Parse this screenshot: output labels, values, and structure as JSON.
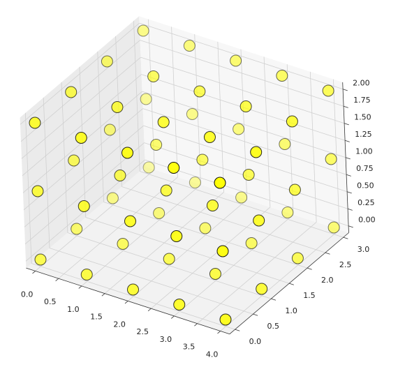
{
  "chart_data": {
    "type": "scatter3d",
    "x": [
      0,
      0,
      0,
      0,
      0,
      0,
      0,
      0,
      0,
      0,
      0,
      0,
      1,
      1,
      1,
      1,
      1,
      1,
      1,
      1,
      1,
      1,
      1,
      1,
      2,
      2,
      2,
      2,
      2,
      2,
      2,
      2,
      2,
      2,
      2,
      2,
      3,
      3,
      3,
      3,
      3,
      3,
      3,
      3,
      3,
      3,
      3,
      3,
      4,
      4,
      4,
      4,
      4,
      4,
      4,
      4,
      4,
      4,
      4,
      4
    ],
    "y": [
      0,
      0,
      0,
      1,
      1,
      1,
      2,
      2,
      2,
      3,
      3,
      3,
      0,
      0,
      0,
      1,
      1,
      1,
      2,
      2,
      2,
      3,
      3,
      3,
      0,
      0,
      0,
      1,
      1,
      1,
      2,
      2,
      2,
      3,
      3,
      3,
      0,
      0,
      0,
      1,
      1,
      1,
      2,
      2,
      2,
      3,
      3,
      3,
      0,
      0,
      0,
      1,
      1,
      1,
      2,
      2,
      2,
      3,
      3,
      3
    ],
    "z": [
      0,
      1,
      2,
      0,
      1,
      2,
      0,
      1,
      2,
      0,
      1,
      2,
      0,
      1,
      2,
      0,
      1,
      2,
      0,
      1,
      2,
      0,
      1,
      2,
      0,
      1,
      2,
      0,
      1,
      2,
      0,
      1,
      2,
      0,
      1,
      2,
      0,
      1,
      2,
      0,
      1,
      2,
      0,
      1,
      2,
      0,
      1,
      2,
      0,
      1,
      2,
      0,
      1,
      2,
      0,
      1,
      2,
      0,
      1,
      2
    ],
    "color": "#ffff00",
    "edgecolor": "#000000",
    "xlim": [
      -0.2,
      4.2
    ],
    "ylim": [
      -0.15,
      3.15
    ],
    "zlim": [
      -0.1,
      2.1
    ],
    "xticks": [
      {
        "value": 0,
        "label": "0.0"
      },
      0.5,
      {
        "value": 1,
        "label": "1.0"
      },
      1.5,
      {
        "value": 2,
        "label": "2.0"
      },
      2.5,
      {
        "value": 3,
        "label": "3.0"
      },
      3.5,
      {
        "value": 4,
        "label": "4.0"
      }
    ],
    "yticks": [
      {
        "value": 0,
        "label": "0.0"
      },
      0.5,
      {
        "value": 1,
        "label": "1.0"
      },
      1.5,
      {
        "value": 2,
        "label": "2.0"
      },
      2.5,
      {
        "value": 3,
        "label": "3.0"
      }
    ],
    "zticks": [
      {
        "value": 0,
        "label": "0.00"
      },
      0.25,
      {
        "value": 0.5,
        "label": "0.50"
      },
      0.75,
      {
        "value": 1,
        "label": "1.00"
      },
      1.25,
      {
        "value": 1.5,
        "label": "1.50"
      },
      1.75,
      {
        "value": 2,
        "label": "2.00"
      }
    ],
    "grid": true
  }
}
